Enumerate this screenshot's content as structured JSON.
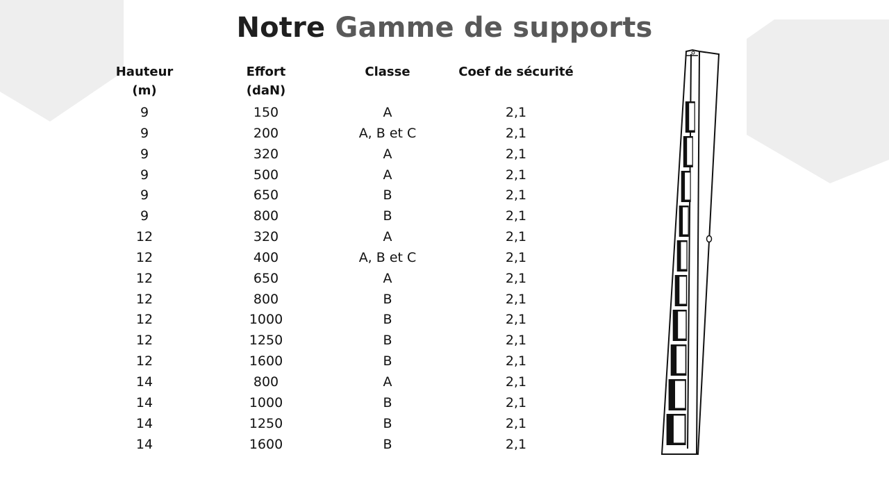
{
  "slide": {
    "title": {
      "strong": "Notre",
      "light": "Gamme de supports"
    }
  },
  "table": {
    "headers": [
      {
        "line1": "Hauteur",
        "line2": "(m)"
      },
      {
        "line1": "Effort",
        "line2": "(daN)"
      },
      {
        "line1": "Classe",
        "line2": ""
      },
      {
        "line1": "Coef de sécurité",
        "line2": ""
      }
    ],
    "rows": [
      [
        "9",
        "150",
        "A",
        "2,1"
      ],
      [
        "9",
        "200",
        "A, B et C",
        "2,1"
      ],
      [
        "9",
        "320",
        "A",
        "2,1"
      ],
      [
        "9",
        "500",
        "A",
        "2,1"
      ],
      [
        "9",
        "650",
        "B",
        "2,1"
      ],
      [
        "9",
        "800",
        "B",
        "2,1"
      ],
      [
        "12",
        "320",
        "A",
        "2,1"
      ],
      [
        "12",
        "400",
        "A, B et C",
        "2,1"
      ],
      [
        "12",
        "650",
        "A",
        "2,1"
      ],
      [
        "12",
        "800",
        "B",
        "2,1"
      ],
      [
        "12",
        "1000",
        "B",
        "2,1"
      ],
      [
        "12",
        "1250",
        "B",
        "2,1"
      ],
      [
        "12",
        "1600",
        "B",
        "2,1"
      ],
      [
        "14",
        "800",
        "A",
        "2,1"
      ],
      [
        "14",
        "1000",
        "B",
        "2,1"
      ],
      [
        "14",
        "1250",
        "B",
        "2,1"
      ],
      [
        "14",
        "1600",
        "B",
        "2,1"
      ]
    ]
  },
  "colors": {
    "title_dark": "#1f1f1f",
    "title_gray": "#595959",
    "decor_gray": "#eeeeee"
  },
  "illustration": {
    "name": "utility-pole-drawing",
    "compartments": 10
  }
}
